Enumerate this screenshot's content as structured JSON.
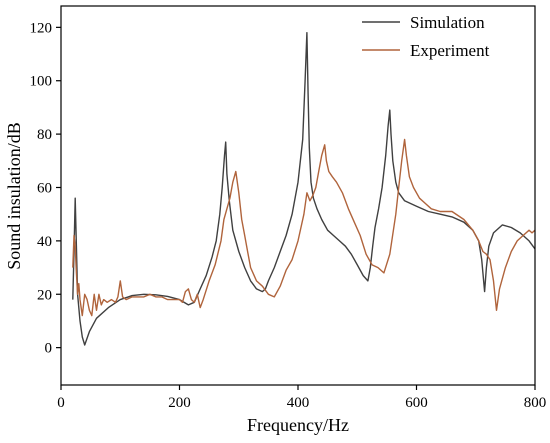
{
  "chart_data": {
    "type": "line",
    "xlabel": "Frequency/Hz",
    "ylabel": "Sound insulation/dB",
    "xlim": [
      0,
      800
    ],
    "ylim": [
      -14,
      128
    ],
    "xticks": [
      0,
      200,
      400,
      600,
      800
    ],
    "yticks": [
      0,
      20,
      40,
      60,
      80,
      100,
      120
    ],
    "grid": false,
    "legend_position": "top-right",
    "series": [
      {
        "name": "Simulation",
        "color": "#404040",
        "x": [
          20,
          22,
          24,
          26,
          28,
          32,
          36,
          40,
          48,
          60,
          80,
          100,
          120,
          140,
          160,
          180,
          200,
          215,
          225,
          235,
          245,
          255,
          262,
          268,
          272,
          276,
          278,
          280,
          284,
          290,
          300,
          310,
          320,
          330,
          340,
          345,
          350,
          360,
          370,
          380,
          390,
          400,
          408,
          412,
          415,
          417,
          419,
          422,
          426,
          432,
          440,
          450,
          460,
          470,
          480,
          490,
          500,
          510,
          518,
          522,
          526,
          530,
          536,
          542,
          548,
          552,
          555,
          557,
          560,
          565,
          570,
          580,
          600,
          620,
          640,
          660,
          680,
          695,
          705,
          710,
          715,
          718,
          722,
          730,
          745,
          760,
          775,
          790,
          800
        ],
        "y": [
          18,
          36,
          56,
          38,
          20,
          10,
          4,
          1,
          6,
          11,
          15,
          18,
          19.5,
          20,
          19.8,
          19.2,
          18,
          16,
          17,
          22,
          27,
          34,
          40,
          50,
          60,
          72,
          77,
          65,
          55,
          44,
          36,
          30,
          25,
          22,
          21,
          22,
          25,
          30,
          36,
          42,
          50,
          62,
          78,
          100,
          118,
          95,
          75,
          62,
          56,
          52,
          48,
          44,
          42,
          40,
          38,
          35,
          31,
          27,
          25,
          30,
          38,
          45,
          52,
          60,
          72,
          83,
          89,
          80,
          70,
          62,
          58,
          55,
          53,
          51,
          50,
          49,
          47,
          44,
          40,
          33,
          21,
          30,
          38,
          43,
          46,
          45,
          43,
          40,
          37
        ]
      },
      {
        "name": "Experiment",
        "color": "#b0643c",
        "x": [
          20,
          22,
          24,
          26,
          28,
          30,
          32,
          36,
          40,
          44,
          48,
          52,
          56,
          60,
          64,
          68,
          72,
          78,
          85,
          92,
          96,
          100,
          104,
          110,
          120,
          130,
          140,
          150,
          160,
          170,
          180,
          190,
          200,
          205,
          210,
          215,
          220,
          225,
          230,
          235,
          240,
          250,
          260,
          270,
          275,
          280,
          285,
          290,
          295,
          300,
          305,
          310,
          315,
          320,
          330,
          340,
          350,
          360,
          370,
          380,
          390,
          400,
          410,
          415,
          420,
          425,
          430,
          435,
          440,
          445,
          448,
          452,
          458,
          465,
          475,
          485,
          495,
          505,
          515,
          525,
          535,
          545,
          555,
          565,
          570,
          575,
          580,
          583,
          588,
          595,
          605,
          615,
          625,
          640,
          660,
          680,
          695,
          705,
          712,
          718,
          724,
          730,
          735,
          740,
          750,
          760,
          770,
          780,
          790,
          795,
          800
        ],
        "y": [
          30,
          42,
          38,
          28,
          20,
          24,
          18,
          12,
          20,
          18,
          14,
          12,
          20,
          14,
          20,
          16,
          18,
          17,
          18,
          17,
          19,
          25,
          19,
          18,
          19,
          19,
          19,
          20,
          19,
          19,
          18,
          18,
          18,
          17,
          21,
          22,
          18,
          17,
          20,
          15,
          18,
          25,
          31,
          40,
          48,
          52,
          56,
          62,
          66,
          58,
          48,
          42,
          36,
          30,
          25,
          23,
          20,
          19,
          23,
          29,
          33,
          40,
          50,
          58,
          55,
          57,
          60,
          66,
          72,
          76,
          70,
          66,
          64,
          62,
          58,
          52,
          47,
          42,
          35,
          31,
          30,
          28,
          35,
          50,
          60,
          70,
          78,
          72,
          64,
          60,
          56,
          54,
          52,
          51,
          51,
          48,
          44,
          40,
          36,
          35,
          33,
          25,
          14,
          22,
          30,
          36,
          40,
          42,
          44,
          43,
          44
        ]
      }
    ]
  }
}
